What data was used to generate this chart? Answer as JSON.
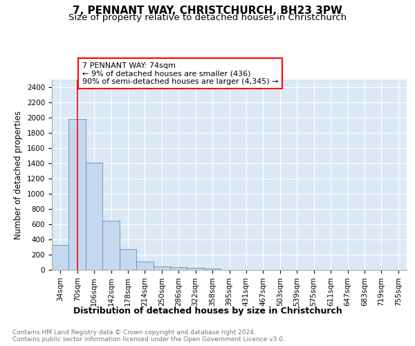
{
  "title": "7, PENNANT WAY, CHRISTCHURCH, BH23 3PW",
  "subtitle": "Size of property relative to detached houses in Christchurch",
  "xlabel": "Distribution of detached houses by size in Christchurch",
  "ylabel": "Number of detached properties",
  "bar_color": "#c5d8ed",
  "bar_edge_color": "#5b8ec4",
  "bg_color": "#dce9f5",
  "grid_color": "#ffffff",
  "categories": [
    "34sqm",
    "70sqm",
    "106sqm",
    "142sqm",
    "178sqm",
    "214sqm",
    "250sqm",
    "286sqm",
    "322sqm",
    "358sqm",
    "395sqm",
    "431sqm",
    "467sqm",
    "503sqm",
    "539sqm",
    "575sqm",
    "611sqm",
    "647sqm",
    "683sqm",
    "719sqm",
    "755sqm"
  ],
  "values": [
    325,
    1980,
    1410,
    650,
    275,
    105,
    50,
    35,
    30,
    20,
    0,
    0,
    0,
    0,
    0,
    0,
    0,
    0,
    0,
    0,
    0
  ],
  "ylim": [
    0,
    2500
  ],
  "yticks": [
    0,
    200,
    400,
    600,
    800,
    1000,
    1200,
    1400,
    1600,
    1800,
    2000,
    2200,
    2400
  ],
  "property_line_x": 1,
  "annotation_line1": "7 PENNANT WAY: 74sqm",
  "annotation_line2": "← 9% of detached houses are smaller (436)",
  "annotation_line3": "90% of semi-detached houses are larger (4,345) →",
  "footnote1": "Contains HM Land Registry data © Crown copyright and database right 2024.",
  "footnote2": "Contains public sector information licensed under the Open Government Licence v3.0.",
  "title_fontsize": 11,
  "subtitle_fontsize": 9.5,
  "xlabel_fontsize": 9,
  "ylabel_fontsize": 8.5,
  "tick_fontsize": 7.5,
  "annotation_fontsize": 8,
  "footnote_fontsize": 6.5
}
